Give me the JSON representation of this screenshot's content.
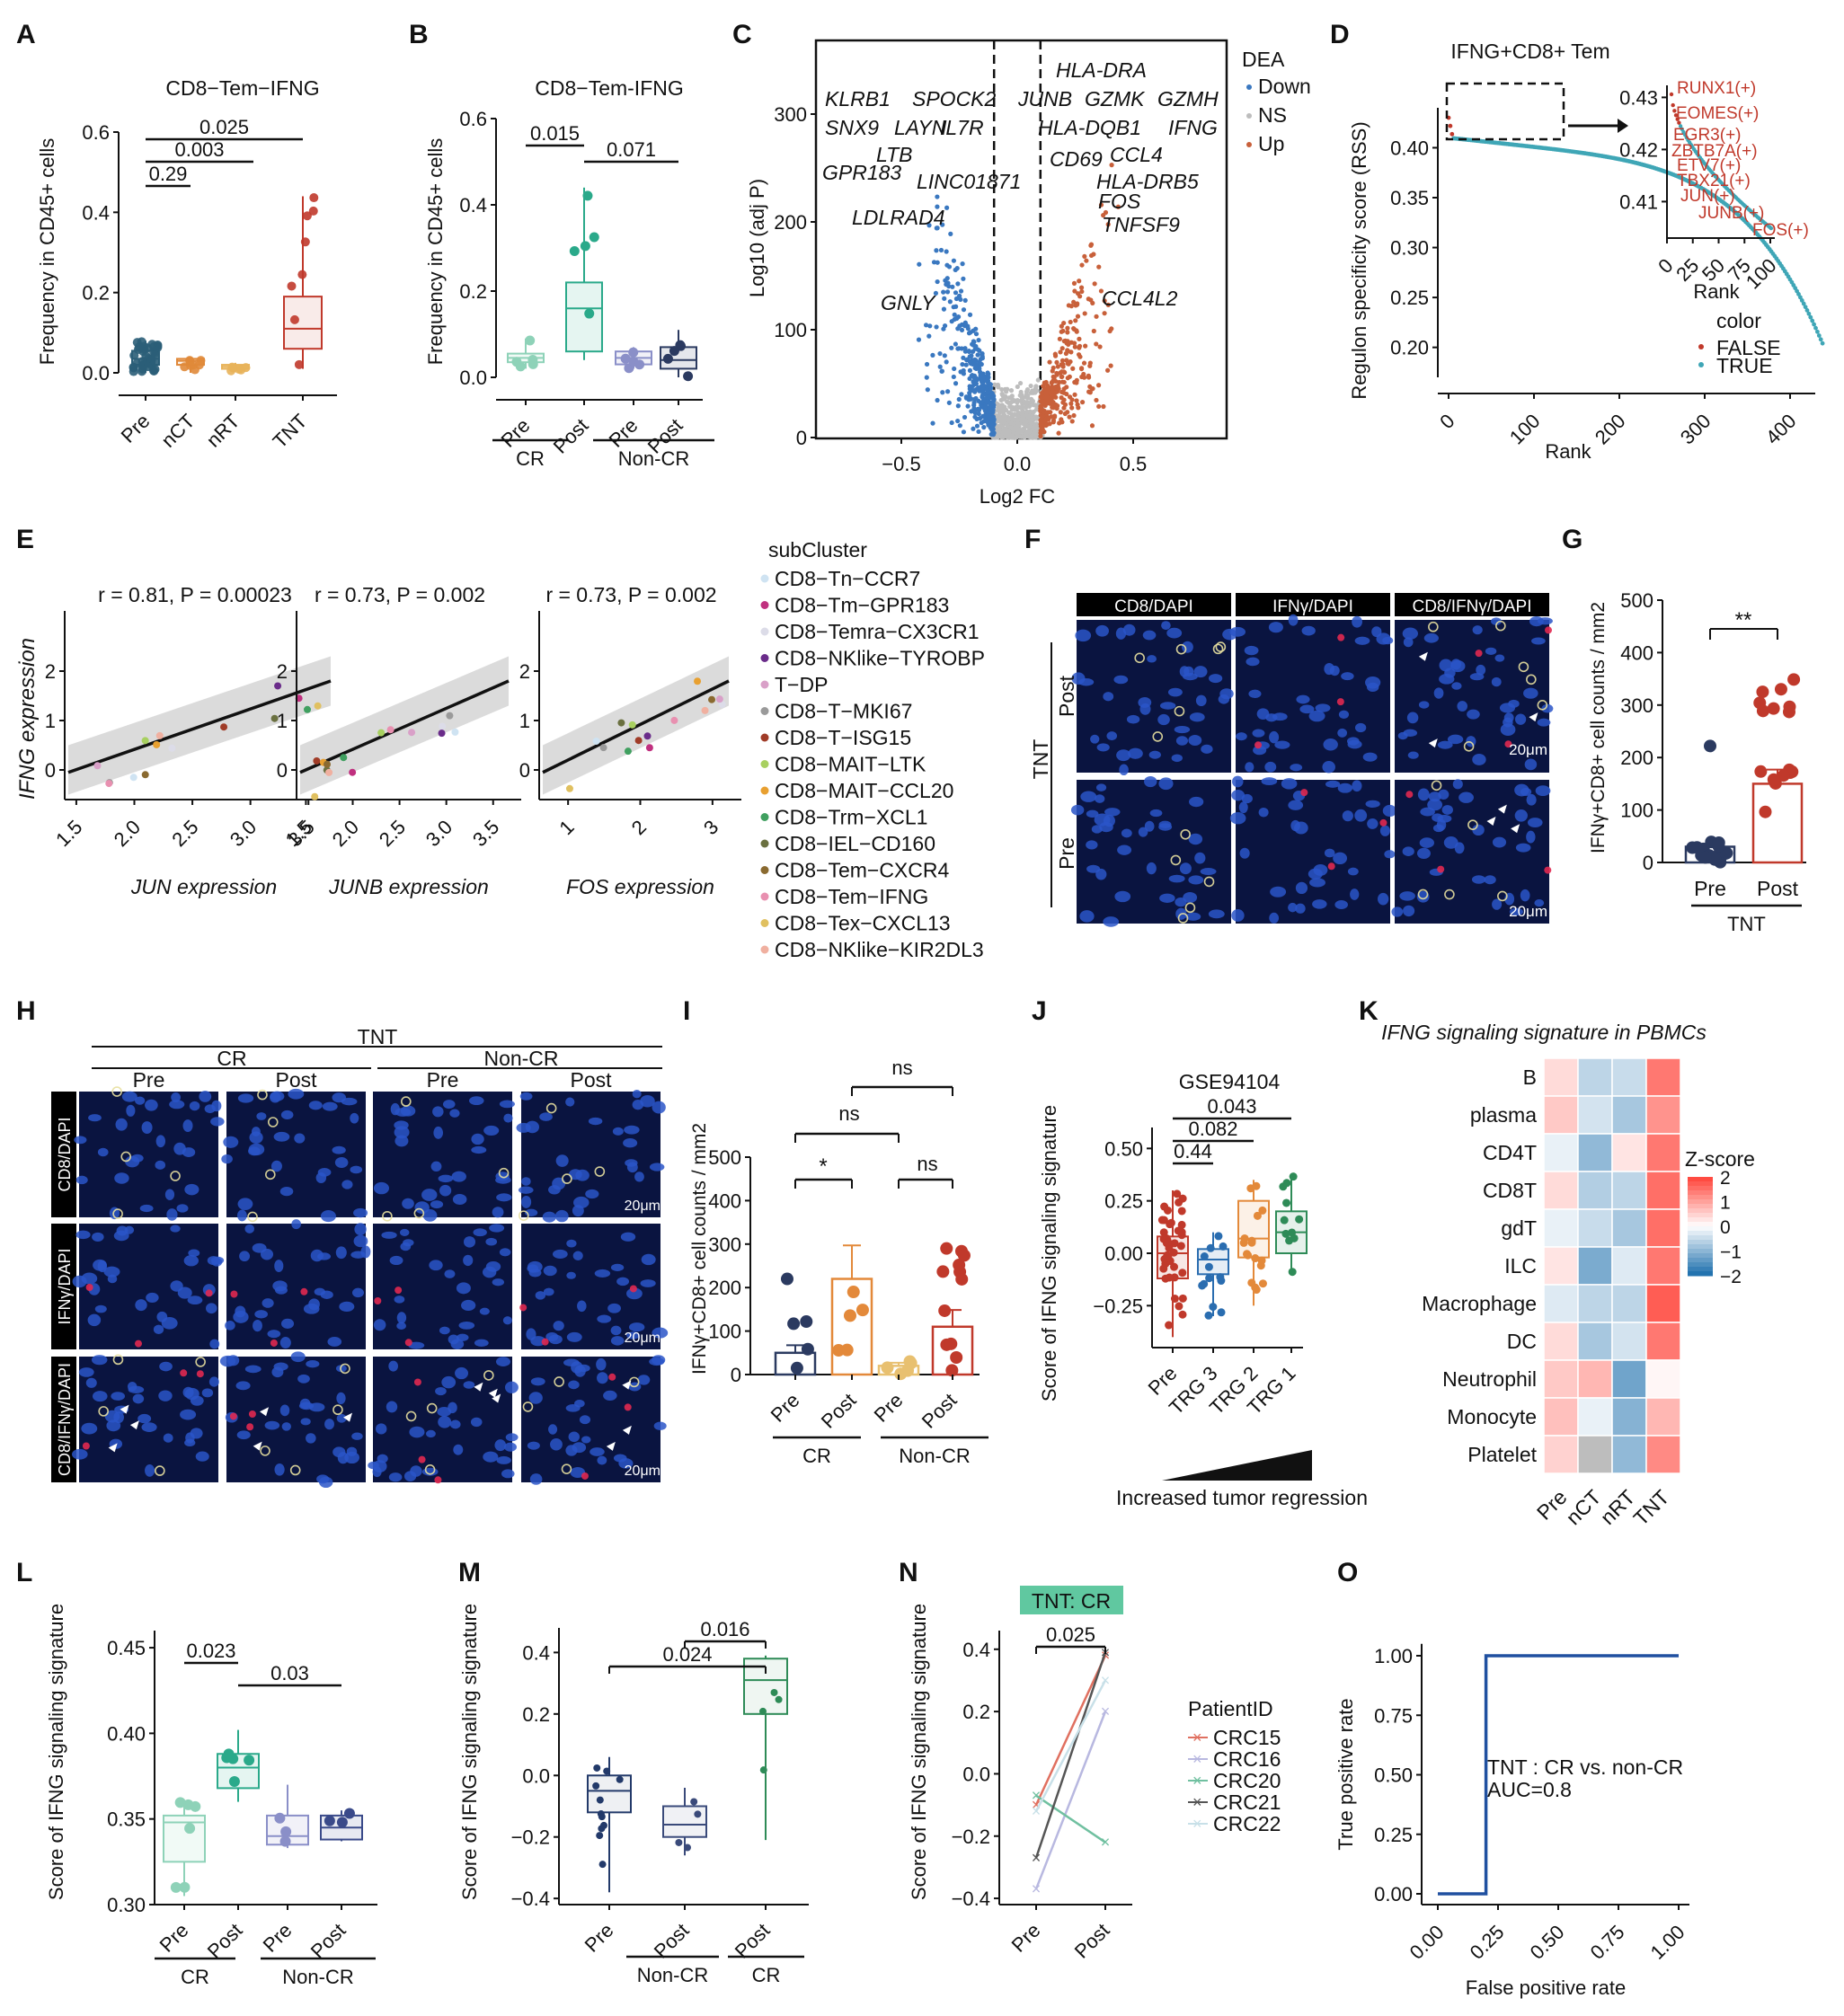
{
  "panels": {
    "A": {
      "letter": "A",
      "title": "CD8−Tem−IFNG",
      "ylabel": "Frequency in CD45+ cells",
      "yticks": [
        "0.0",
        "0.2",
        "0.4",
        "0.6"
      ],
      "categories": [
        "Pre",
        "nCT",
        "nRT",
        "TNT"
      ],
      "pvals": [
        "0.025",
        "0.003",
        "0.29"
      ]
    },
    "B": {
      "letter": "B",
      "title": "CD8−Tem-IFNG",
      "ylabel": "Frequency in CD45+ cells",
      "yticks": [
        "0.0",
        "0.2",
        "0.4",
        "0.6"
      ],
      "categories": [
        "Pre",
        "Post",
        "Pre",
        "Post"
      ],
      "groups": [
        "CR",
        "Non-CR"
      ],
      "pvals": [
        "0.015",
        "0.071"
      ]
    },
    "C": {
      "letter": "C",
      "ylabel": "Log10 (adj P)",
      "xlabel": "Log2 FC",
      "yticks": [
        "0",
        "100",
        "200",
        "300"
      ],
      "xticks": [
        "−0.5",
        "0.0",
        "0.5"
      ],
      "legend_title": "DEA",
      "legend": [
        "Down",
        "NS",
        "Up"
      ],
      "genes_left": [
        "KLRB1",
        "SPOCK2",
        "IL7R",
        "SNX9",
        "LAYN",
        "LTB",
        "GPR183",
        "LINC01871",
        "LDLRAD4",
        "GNLY"
      ],
      "genes_right": [
        "HLA-DRA",
        "JUNB",
        "GZMK",
        "GZMH",
        "HLA-DQB1",
        "IFNG",
        "CD69",
        "CCL4",
        "HLA-DRB5",
        "FOS",
        "TNFSF9",
        "CCL4L2"
      ]
    },
    "D": {
      "letter": "D",
      "title": "IFNG+CD8+ Tem",
      "ylabel": "Regulon specificity score (RSS)",
      "xlabel": "Rank",
      "yticks": [
        "0.20",
        "0.25",
        "0.30",
        "0.35",
        "0.40"
      ],
      "xticks": [
        "0",
        "100",
        "200",
        "300",
        "400"
      ],
      "inset_yticks": [
        "0.41",
        "0.42",
        "0.43"
      ],
      "inset_xticks": [
        "0",
        "25",
        "50",
        "75",
        "100"
      ],
      "inset_xlabel": "Rank",
      "regulons": [
        "RUNX1(+)",
        "EOMES(+)",
        "EGR3(+)",
        "ZBTB7A(+)",
        "ETV7(+)",
        "TBX21(+)",
        "JUN(+)",
        "JUNB(+)",
        "FOS(+)"
      ],
      "legend_title": "color",
      "legend": [
        "FALSE",
        "TRUE"
      ]
    },
    "E": {
      "letter": "E",
      "ylabel": "IFNG expression",
      "plots": [
        {
          "stat": "r = 0.81, P = 0.00023",
          "xlabel": "JUN expression",
          "xticks": [
            "1.5",
            "2.0",
            "2.5",
            "3.0",
            "3.5"
          ]
        },
        {
          "stat": "r = 0.73, P = 0.002",
          "xlabel": "JUNB expression",
          "xticks": [
            "1.5",
            "2.0",
            "2.5",
            "3.0",
            "3.5"
          ]
        },
        {
          "stat": "r = 0.73, P = 0.002",
          "xlabel": "FOS expression",
          "xticks": [
            "1",
            "2",
            "3"
          ]
        }
      ],
      "yticks": [
        "0",
        "1",
        "2"
      ],
      "legend_title": "subCluster",
      "legend": [
        "CD8−Tn−CCR7",
        "CD8−Tm−GPR183",
        "CD8−Temra−CX3CR1",
        "CD8−NKlike−TYROBP",
        "T−DP",
        "CD8−T−MKI67",
        "CD8−T−ISG15",
        "CD8−MAIT−LTK",
        "CD8−MAIT−CCL20",
        "CD8−Trm−XCL1",
        "CD8−IEL−CD160",
        "CD8−Tem−CXCR4",
        "CD8−Tem−IFNG",
        "CD8−Tex−CXCL13",
        "CD8−NKlike−KIR2DL3"
      ],
      "legend_colors": [
        "#cfe3f2",
        "#c0307f",
        "#dcdce8",
        "#6a2c8a",
        "#d9a0c8",
        "#9a9a9a",
        "#a03c28",
        "#a8d060",
        "#e8a030",
        "#40a060",
        "#6a7040",
        "#8a6a30",
        "#e890b0",
        "#e0c060",
        "#f0b0a0"
      ]
    },
    "F": {
      "letter": "F",
      "header": [
        "CD8/DAPI",
        "IFNγ/DAPI",
        "CD8/IFNγ/DAPI"
      ],
      "side": "TNT",
      "rows": [
        "Post",
        "Pre"
      ],
      "scale": "20μm"
    },
    "G": {
      "letter": "G",
      "ylabel": "IFNγ+CD8+ cell counts / mm2",
      "yticks": [
        "0",
        "100",
        "200",
        "300",
        "400",
        "500"
      ],
      "categories": [
        "Pre",
        "Post"
      ],
      "group": "TNT",
      "sig": "**"
    },
    "H": {
      "letter": "H",
      "top": "TNT",
      "groups": [
        "CR",
        "Non-CR"
      ],
      "cols": [
        "Pre",
        "Post",
        "Pre",
        "Post"
      ],
      "rows": [
        "CD8/DAPI",
        "IFNγ/DAPI",
        "CD8/IFNγ/DAPI"
      ],
      "scale": "20μm"
    },
    "I": {
      "letter": "I",
      "ylabel": "IFNγ+CD8+ cell counts / mm2",
      "yticks": [
        "0",
        "100",
        "200",
        "300",
        "400",
        "500"
      ],
      "categories": [
        "Pre",
        "Post",
        "Pre",
        "Post"
      ],
      "groups": [
        "CR",
        "Non-CR"
      ],
      "sig": [
        "*",
        "ns",
        "ns",
        "ns"
      ]
    },
    "J": {
      "letter": "J",
      "title": "GSE94104",
      "ylabel": "Score of IFNG signaling signature",
      "yticks": [
        "−0.25",
        "0.00",
        "0.25",
        "0.50"
      ],
      "categories": [
        "Pre",
        "TRG 3",
        "TRG 2",
        "TRG 1"
      ],
      "pvals": [
        "0.043",
        "0.082",
        "0.44"
      ],
      "arrow": "Increased tumor regression"
    },
    "K": {
      "letter": "K",
      "title": "IFNG signaling signature in PBMCs",
      "rows": [
        "B",
        "plasma",
        "CD4T",
        "CD8T",
        "gdT",
        "ILC",
        "Macrophage",
        "DC",
        "Neutrophil",
        "Monocyte",
        "Platelet"
      ],
      "cols": [
        "Pre",
        "nCT",
        "nRT",
        "TNT"
      ],
      "legend_title": "Z-score",
      "legend_ticks": [
        "2",
        "1",
        "0",
        "−1",
        "−2"
      ]
    },
    "L": {
      "letter": "L",
      "ylabel": "Score of IFNG signaling signature",
      "yticks": [
        "0.30",
        "0.35",
        "0.40",
        "0.45"
      ],
      "categories": [
        "Pre",
        "Post",
        "Pre",
        "Post"
      ],
      "groups": [
        "CR",
        "Non-CR"
      ],
      "pvals": [
        "0.023",
        "0.03"
      ]
    },
    "M": {
      "letter": "M",
      "ylabel": "Score of IFNG signaling signature",
      "yticks": [
        "−0.4",
        "−0.2",
        "0.0",
        "0.2",
        "0.4"
      ],
      "categories": [
        "Pre",
        "Post",
        "Post"
      ],
      "groups": [
        "Non-CR",
        "CR"
      ],
      "pvals": [
        "0.016",
        "0.024"
      ]
    },
    "N": {
      "letter": "N",
      "title": "TNT: CR",
      "ylabel": "Score of IFNG signaling signature",
      "yticks": [
        "−0.4",
        "−0.2",
        "0.0",
        "0.2",
        "0.4"
      ],
      "categories": [
        "Pre",
        "Post"
      ],
      "pval": "0.025",
      "legend_title": "PatientID",
      "legend": [
        "CRC15",
        "CRC16",
        "CRC20",
        "CRC21",
        "CRC22"
      ],
      "legend_colors": [
        "#e07060",
        "#b8b8e0",
        "#70c0a0",
        "#555555",
        "#c8e0e8"
      ]
    },
    "O": {
      "letter": "O",
      "ylabel": "True positive rate",
      "xlabel": "False positive rate",
      "yticks": [
        "0.00",
        "0.25",
        "0.50",
        "0.75",
        "1.00"
      ],
      "xticks": [
        "0.00",
        "0.25",
        "0.50",
        "0.75",
        "1.00"
      ],
      "annot1": "TNT : CR vs. non-CR",
      "annot2": "AUC=0.8"
    }
  },
  "chart_data": [
    {
      "panel": "A",
      "type": "box",
      "categories": [
        "Pre",
        "nCT",
        "nRT",
        "TNT"
      ],
      "series": [
        {
          "values": [
            [
              0.0,
              0.02,
              0.035,
              0.055,
              0.08
            ],
            [
              0.0,
              0.02,
              0.03,
              0.035,
              0.04
            ],
            [
              0.005,
              0.01,
              0.015,
              0.02,
              0.025
            ],
            [
              0.01,
              0.06,
              0.11,
              0.19,
              0.44
            ]
          ]
        }
      ],
      "ylim": [
        0,
        0.65
      ]
    },
    {
      "panel": "B",
      "type": "box",
      "categories": [
        "Pre",
        "Post",
        "Pre",
        "Post"
      ],
      "series": [
        {
          "values": [
            [
              0.02,
              0.035,
              0.045,
              0.055,
              0.09
            ],
            [
              0.04,
              0.06,
              0.16,
              0.22,
              0.44
            ],
            [
              0.02,
              0.03,
              0.045,
              0.06,
              0.07
            ],
            [
              0.0,
              0.02,
              0.04,
              0.07,
              0.11
            ]
          ]
        }
      ],
      "ylim": [
        0,
        0.65
      ]
    },
    {
      "panel": "D",
      "type": "scatter",
      "xlabel": "Rank",
      "ylabel": "Regulon specificity score (RSS)",
      "xlim": [
        0,
        450
      ],
      "ylim": [
        0.17,
        0.44
      ]
    },
    {
      "panel": "G",
      "type": "bar",
      "categories": [
        "Pre",
        "Post"
      ],
      "values": [
        30,
        150
      ],
      "ylim": [
        0,
        500
      ]
    },
    {
      "panel": "I",
      "type": "bar",
      "categories": [
        "CR Pre",
        "CR Post",
        "Non-CR Pre",
        "Non-CR Post"
      ],
      "values": [
        50,
        220,
        20,
        110
      ],
      "ylim": [
        0,
        500
      ]
    },
    {
      "panel": "J",
      "type": "box",
      "categories": [
        "Pre",
        "TRG 3",
        "TRG 2",
        "TRG 1"
      ],
      "series": [
        {
          "values": [
            [
              -0.4,
              -0.12,
              0.0,
              0.08,
              0.3
            ],
            [
              -0.3,
              -0.1,
              -0.03,
              0.02,
              0.1
            ],
            [
              -0.25,
              -0.02,
              0.07,
              0.25,
              0.35
            ],
            [
              -0.1,
              0.0,
              0.1,
              0.2,
              0.38
            ]
          ]
        }
      ],
      "ylim": [
        -0.45,
        0.6
      ]
    },
    {
      "panel": "K",
      "type": "heatmap",
      "rows": [
        "B",
        "plasma",
        "CD4T",
        "CD8T",
        "gdT",
        "ILC",
        "Macrophage",
        "DC",
        "Neutrophil",
        "Monocyte",
        "Platelet"
      ],
      "cols": [
        "Pre",
        "nCT",
        "nRT",
        "TNT"
      ],
      "values": [
        [
          0.4,
          -0.6,
          -0.5,
          1.5
        ],
        [
          0.6,
          -0.4,
          -0.8,
          1.2
        ],
        [
          -0.2,
          -1.0,
          0.3,
          1.5
        ],
        [
          0.4,
          -0.7,
          -0.6,
          1.6
        ],
        [
          -0.2,
          -0.5,
          -0.8,
          1.6
        ],
        [
          0.3,
          -1.2,
          -0.3,
          1.5
        ],
        [
          -0.3,
          -0.6,
          -0.6,
          1.8
        ],
        [
          0.4,
          -0.8,
          -0.4,
          1.5
        ],
        [
          0.6,
          0.8,
          -1.3,
          0.1
        ],
        [
          0.7,
          -0.2,
          -1.1,
          0.8
        ],
        [
          0.5,
          null,
          -1.0,
          1.3
        ]
      ],
      "legend_ticks": [
        2,
        1,
        0,
        -1,
        -2
      ]
    },
    {
      "panel": "L",
      "type": "box",
      "categories": [
        "Pre",
        "Post",
        "Pre",
        "Post"
      ],
      "series": [
        {
          "values": [
            [
              0.305,
              0.325,
              0.348,
              0.352,
              0.36
            ],
            [
              0.36,
              0.368,
              0.38,
              0.388,
              0.402
            ],
            [
              0.333,
              0.335,
              0.34,
              0.352,
              0.37
            ],
            [
              0.337,
              0.338,
              0.345,
              0.352,
              0.355
            ]
          ]
        }
      ],
      "ylim": [
        0.3,
        0.46
      ]
    },
    {
      "panel": "M",
      "type": "box",
      "categories": [
        "Pre",
        "Post",
        "Post"
      ],
      "series": [
        {
          "values": [
            [
              -0.38,
              -0.12,
              -0.05,
              0.0,
              0.06
            ],
            [
              -0.26,
              -0.2,
              -0.16,
              -0.1,
              -0.04
            ],
            [
              -0.21,
              0.2,
              0.31,
              0.38,
              0.39
            ]
          ]
        }
      ],
      "ylim": [
        -0.42,
        0.48
      ]
    },
    {
      "panel": "N",
      "type": "line",
      "x": [
        "Pre",
        "Post"
      ],
      "series": [
        {
          "name": "CRC15",
          "values": [
            -0.1,
            0.38
          ]
        },
        {
          "name": "CRC16",
          "values": [
            -0.37,
            0.2
          ]
        },
        {
          "name": "CRC20",
          "values": [
            -0.07,
            -0.22
          ]
        },
        {
          "name": "CRC21",
          "values": [
            -0.27,
            0.39
          ]
        },
        {
          "name": "CRC22",
          "values": [
            -0.12,
            0.3
          ]
        }
      ],
      "ylim": [
        -0.42,
        0.46
      ]
    },
    {
      "panel": "O",
      "type": "line",
      "x": [
        0,
        0.2,
        0.2,
        1.0
      ],
      "y": [
        0,
        0,
        1,
        1
      ],
      "xlabel": "False positive rate",
      "ylabel": "True positive rate",
      "xlim": [
        0,
        1
      ],
      "ylim": [
        0,
        1
      ]
    }
  ],
  "colors": {
    "down": "#3a78c0",
    "up": "#c8603a",
    "ns": "#bdbdbd",
    "teal": "#3fa6b6",
    "red": "#c0392b",
    "cr_pre": "#8ed2b8",
    "cr_post": "#2aa98a",
    "ncr": "#8a8fc8",
    "dark_navy": "#2b3a60",
    "orange": "#e3893a",
    "blue_box": "#2a6db0",
    "green": "#2e8b57"
  }
}
